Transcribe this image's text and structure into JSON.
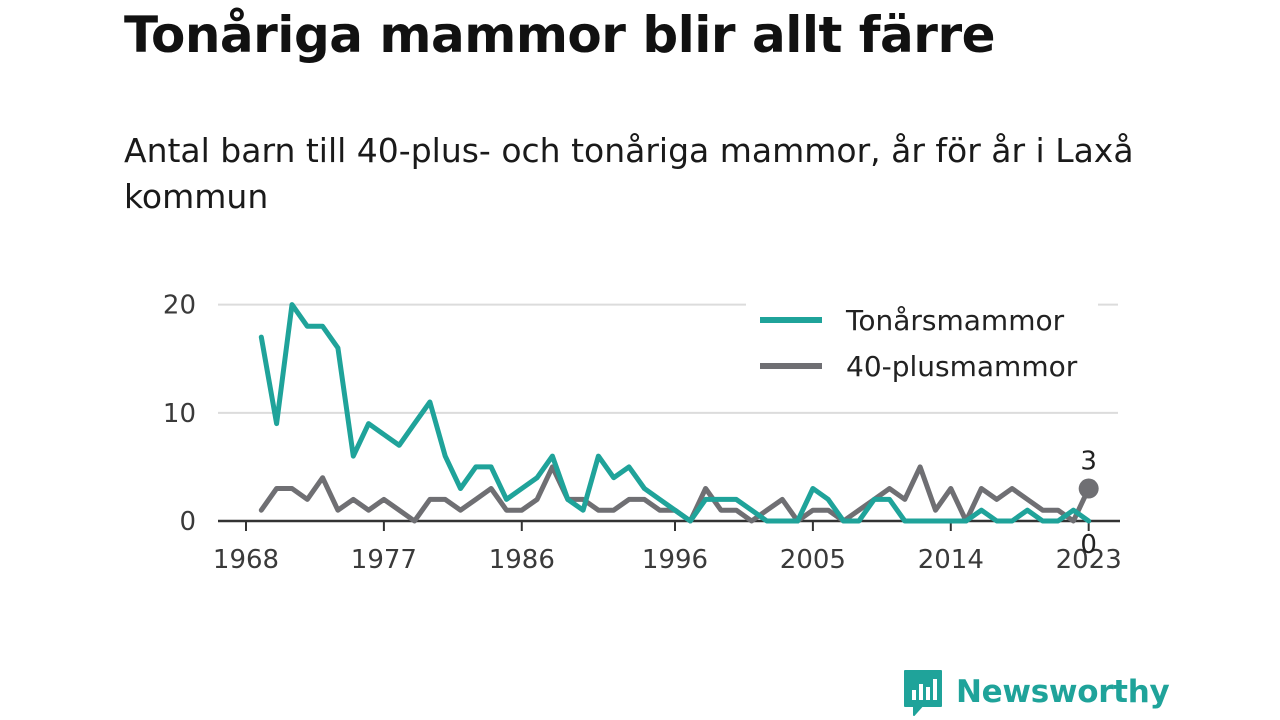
{
  "header": {
    "title": "Tonåriga mammor blir allt färre",
    "subtitle": "Antal barn till 40-plus- och tonåriga mammor, år för år i Laxå kommun"
  },
  "brand": {
    "name": "Newsworthy",
    "color": "#1fa39a",
    "icon": "newsworthy-logo-icon"
  },
  "chart_data": {
    "type": "line",
    "x": [
      1969,
      1970,
      1971,
      1972,
      1973,
      1974,
      1975,
      1976,
      1977,
      1978,
      1979,
      1980,
      1981,
      1982,
      1983,
      1984,
      1985,
      1986,
      1987,
      1988,
      1989,
      1990,
      1991,
      1992,
      1993,
      1994,
      1995,
      1996,
      1997,
      1998,
      1999,
      2000,
      2001,
      2002,
      2003,
      2004,
      2005,
      2006,
      2007,
      2008,
      2009,
      2010,
      2011,
      2012,
      2013,
      2014,
      2015,
      2016,
      2017,
      2018,
      2019,
      2020,
      2021,
      2022,
      2023
    ],
    "series": [
      {
        "name": "Tonårsmammor",
        "color": "#1fa39a",
        "values": [
          17,
          9,
          20,
          18,
          18,
          16,
          6,
          9,
          8,
          7,
          9,
          11,
          6,
          3,
          5,
          5,
          2,
          3,
          4,
          6,
          2,
          1,
          6,
          4,
          5,
          3,
          2,
          1,
          0,
          2,
          2,
          2,
          1,
          0,
          0,
          0,
          3,
          2,
          0,
          0,
          2,
          2,
          0,
          0,
          0,
          0,
          0,
          1,
          0,
          0,
          1,
          0,
          0,
          1,
          0
        ]
      },
      {
        "name": "40-plusmammor",
        "color": "#6f6f73",
        "values": [
          1,
          3,
          3,
          2,
          4,
          1,
          2,
          1,
          2,
          1,
          0,
          2,
          2,
          1,
          2,
          3,
          1,
          1,
          2,
          5,
          2,
          2,
          1,
          1,
          2,
          2,
          1,
          1,
          0,
          3,
          1,
          1,
          0,
          1,
          2,
          0,
          1,
          1,
          0,
          1,
          2,
          3,
          2,
          5,
          1,
          3,
          0,
          3,
          2,
          3,
          2,
          1,
          1,
          0,
          3
        ]
      }
    ],
    "xticks": [
      1968,
      1977,
      1986,
      1996,
      2005,
      2014,
      2023
    ],
    "yticks": [
      0,
      10,
      20
    ],
    "ylim": [
      0,
      22
    ],
    "xlim": [
      1968,
      2024
    ],
    "end_labels": {
      "40-plusmammor": "3",
      "Tonårsmammor": "0"
    },
    "grid": true,
    "legend": "top-right"
  }
}
